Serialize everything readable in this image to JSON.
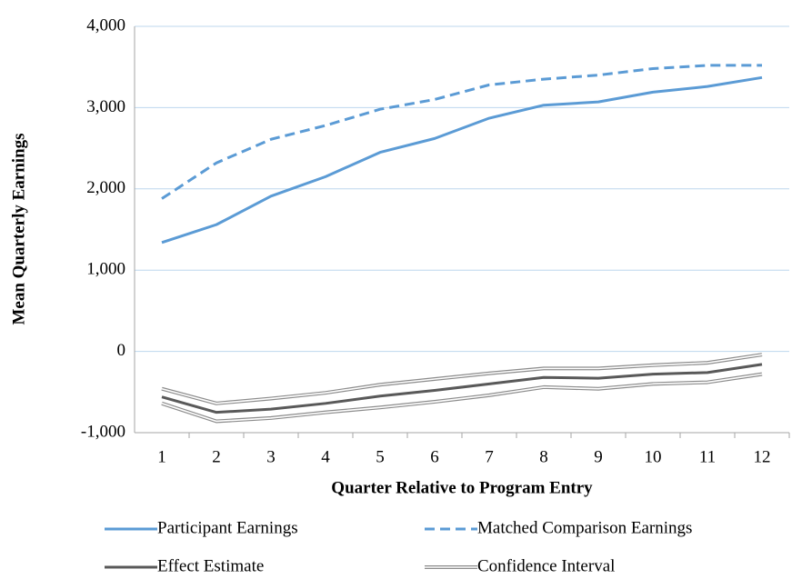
{
  "chart_data": {
    "type": "line",
    "x_label": "Quarter Relative to Program Entry",
    "y_label": "Mean Quarterly Earnings",
    "categories": [
      1,
      2,
      3,
      4,
      5,
      6,
      7,
      8,
      9,
      10,
      11,
      12
    ],
    "ylim": [
      -1000,
      4000
    ],
    "yticks": [
      {
        "value": -1000,
        "label": "-1,000"
      },
      0,
      {
        "value": 1000,
        "label": "1,000"
      },
      {
        "value": 2000,
        "label": "2,000"
      },
      {
        "value": 3000,
        "label": "3,000"
      },
      {
        "value": 4000,
        "label": "4,000"
      }
    ],
    "grid": true,
    "legend": "bottom",
    "series": [
      {
        "name": "Participant Earnings",
        "color": "#5b9bd5",
        "style": "solid",
        "values": [
          1340,
          1560,
          1910,
          2150,
          2450,
          2620,
          2870,
          3030,
          3070,
          3190,
          3260,
          3370
        ]
      },
      {
        "name": "Matched Comparison Earnings",
        "color": "#5b9bd5",
        "style": "dashed",
        "values": [
          1880,
          2320,
          2610,
          2780,
          2980,
          3100,
          3280,
          3350,
          3400,
          3480,
          3520,
          3520
        ]
      },
      {
        "name": "Effect Estimate",
        "color": "#595959",
        "style": "solid",
        "values": [
          -560,
          -750,
          -710,
          -640,
          -550,
          -480,
          -400,
          -320,
          -330,
          -280,
          -260,
          -160
        ]
      },
      {
        "name": "Confidence Interval",
        "color": "#8c8c8c",
        "style": "double",
        "upper": [
          -460,
          -640,
          -580,
          -510,
          -410,
          -340,
          -270,
          -210,
          -210,
          -170,
          -140,
          -40
        ],
        "lower": [
          -640,
          -860,
          -820,
          -750,
          -690,
          -620,
          -540,
          -440,
          -460,
          -400,
          -380,
          -280
        ]
      }
    ]
  }
}
